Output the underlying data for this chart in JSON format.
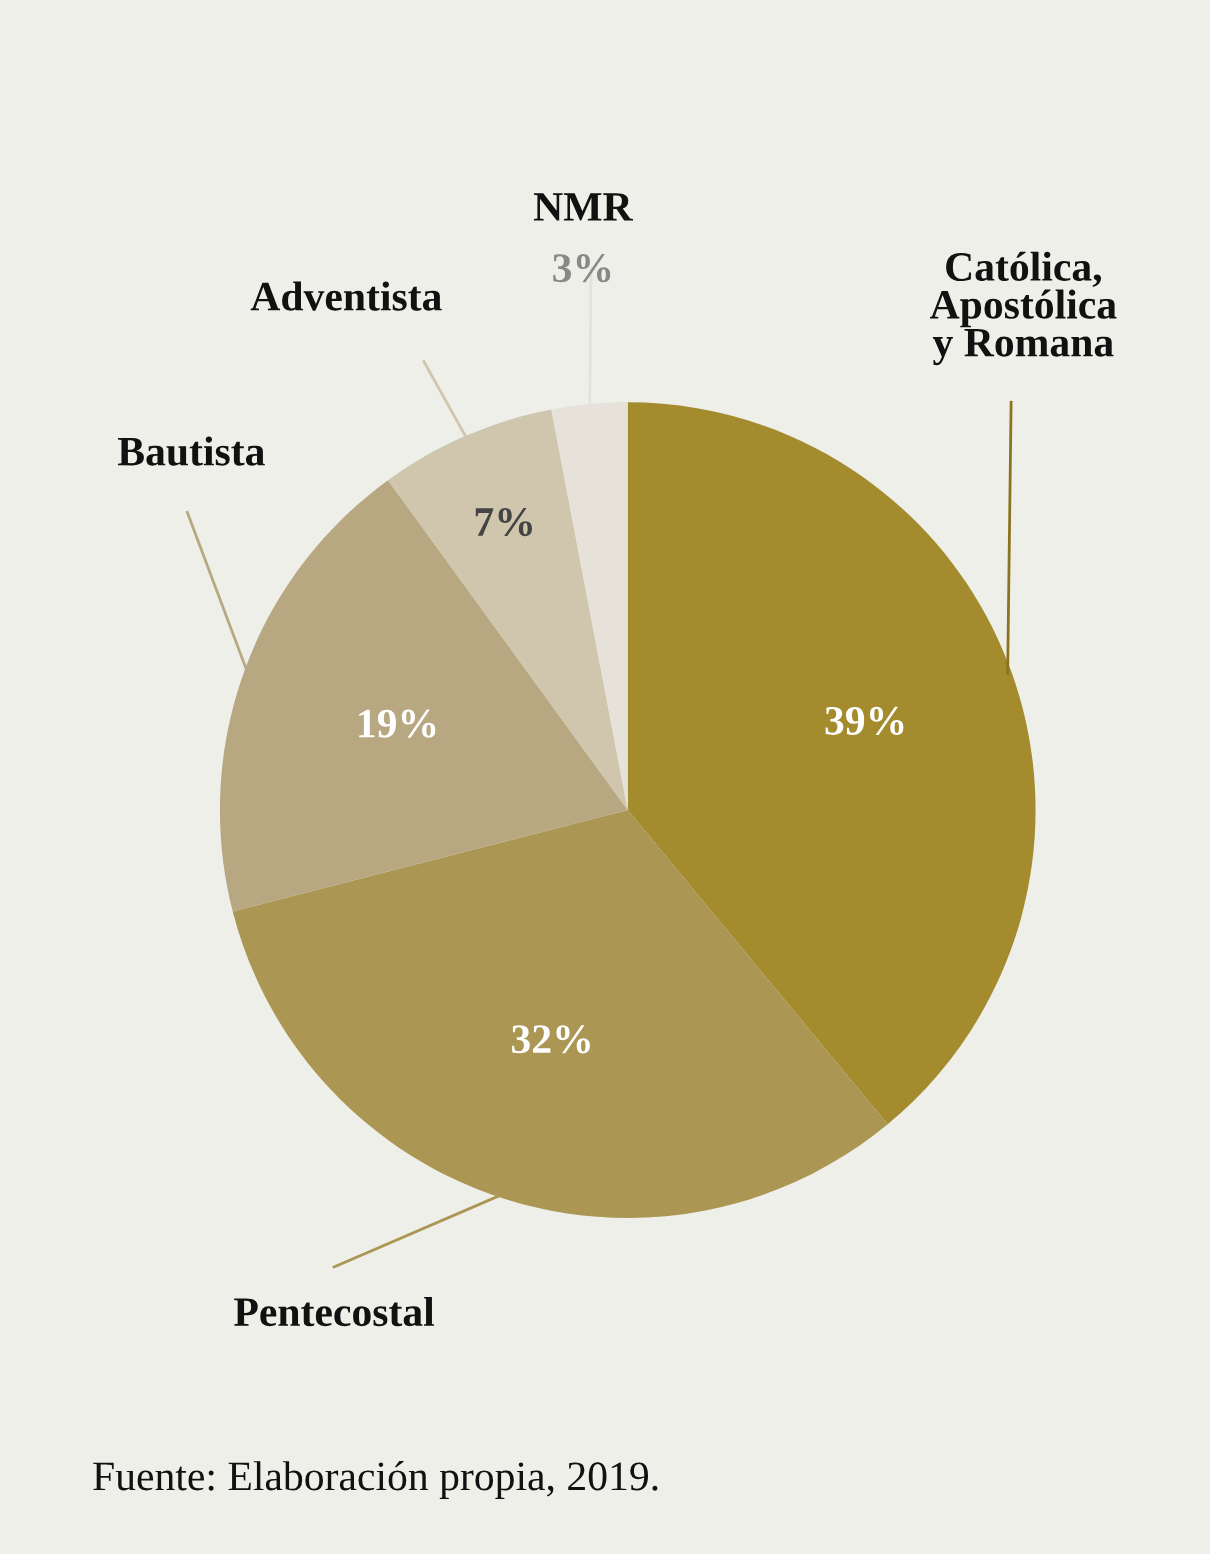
{
  "chart_data": {
    "type": "pie",
    "categories": [
      "Católica,\nApostólica\ny Romana",
      "Pentecostal",
      "Bautista",
      "Adventista",
      "NMR"
    ],
    "values": [
      39,
      32,
      19,
      7,
      3
    ],
    "value_labels": [
      "39%",
      "32%",
      "19%",
      "7%",
      "3%"
    ],
    "colors": [
      "#a38b2e",
      "#ab9653",
      "#b8a882",
      "#d0c6ad",
      "#e6e2d9"
    ],
    "legend": false,
    "annotations": [
      "Fuente: Elaboración propia, 2019."
    ]
  }
}
